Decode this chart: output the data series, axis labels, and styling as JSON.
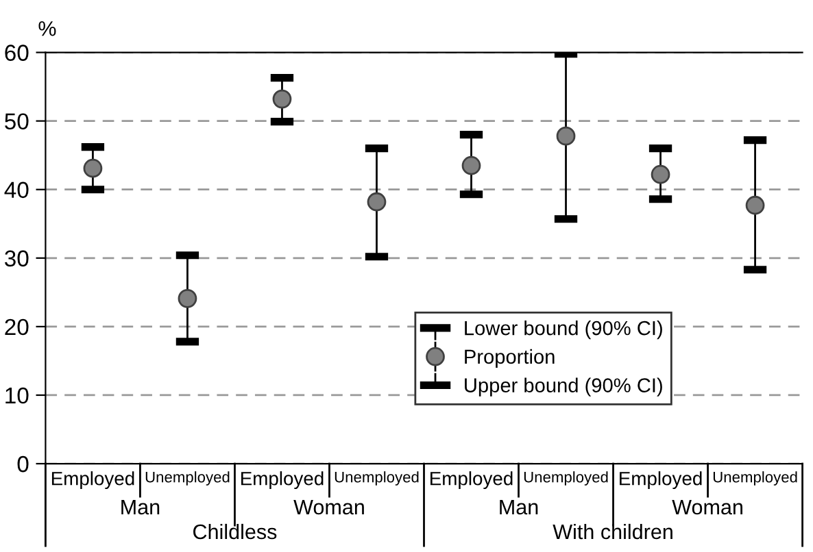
{
  "chart_data": {
    "type": "scatter",
    "ylabel": "%",
    "categories": [
      "Employed",
      "Unemployed",
      "Employed",
      "Unemployed",
      "Employed",
      "Unemployed",
      "Employed",
      "Unemployed"
    ],
    "series": [
      {
        "name": "Proportion",
        "color": "#808080",
        "values": [
          43.1,
          24.1,
          53.2,
          38.2,
          43.5,
          47.8,
          42.2,
          37.7
        ],
        "errors": [
          [
            40,
            46.2
          ],
          [
            17.8,
            30.4
          ],
          [
            49.9,
            56.3
          ],
          [
            30.2,
            46.0
          ],
          [
            39.3,
            48.0
          ],
          [
            35.7,
            59.8
          ],
          [
            38.6,
            46.0
          ],
          [
            28.3,
            47.2
          ]
        ]
      }
    ],
    "annotations": [
      "Man",
      "Woman",
      "Man",
      "Woman",
      "Childless",
      "With children",
      "Lower bound (90% CI)",
      "Upper bound (90% CI)"
    ],
    "marker": "circle",
    "ylim": [
      0,
      60
    ],
    "yticks": [
      0,
      10,
      20,
      30,
      40,
      50,
      60
    ],
    "grid": "y",
    "legend": "bottom right"
  }
}
